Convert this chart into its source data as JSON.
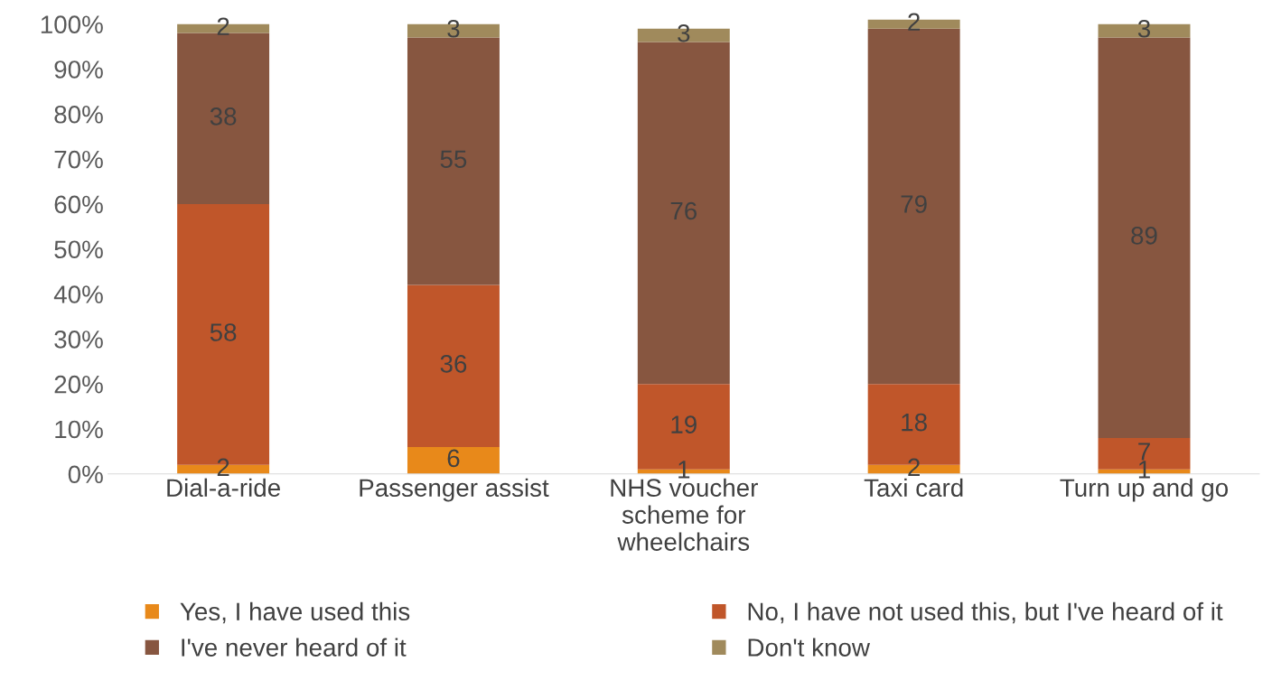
{
  "chart_data": {
    "type": "bar",
    "stacked": true,
    "data_labels": true,
    "legend": "bottom",
    "grid": false,
    "categories": [
      "Dial-a-ride",
      "Passenger assist",
      "NHS voucher scheme for wheelchairs",
      "Taxi card",
      "Turn up and go"
    ],
    "series": [
      {
        "name": "Yes, I have used this",
        "color": "#e8891a",
        "values": [
          2,
          6,
          1,
          2,
          1
        ]
      },
      {
        "name": "No, I have not used this, but I've heard of it",
        "color": "#c0562a",
        "values": [
          58,
          36,
          19,
          18,
          7
        ]
      },
      {
        "name": "I've never heard of it",
        "color": "#875640",
        "values": [
          38,
          55,
          76,
          79,
          89
        ]
      },
      {
        "name": "Don't know",
        "color": "#a08a5c",
        "values": [
          2,
          3,
          3,
          2,
          3
        ]
      }
    ],
    "ylim": [
      0,
      101
    ],
    "yticks": [
      {
        "value": 0,
        "label": "0%"
      },
      {
        "value": 10,
        "label": "10%"
      },
      {
        "value": 20,
        "label": "20%"
      },
      {
        "value": 30,
        "label": "30%"
      },
      {
        "value": 40,
        "label": "40%"
      },
      {
        "value": 50,
        "label": "50%"
      },
      {
        "value": 60,
        "label": "60%"
      },
      {
        "value": 70,
        "label": "70%"
      },
      {
        "value": 80,
        "label": "80%"
      },
      {
        "value": 90,
        "label": "90%"
      },
      {
        "value": 100,
        "label": "100%"
      }
    ]
  }
}
